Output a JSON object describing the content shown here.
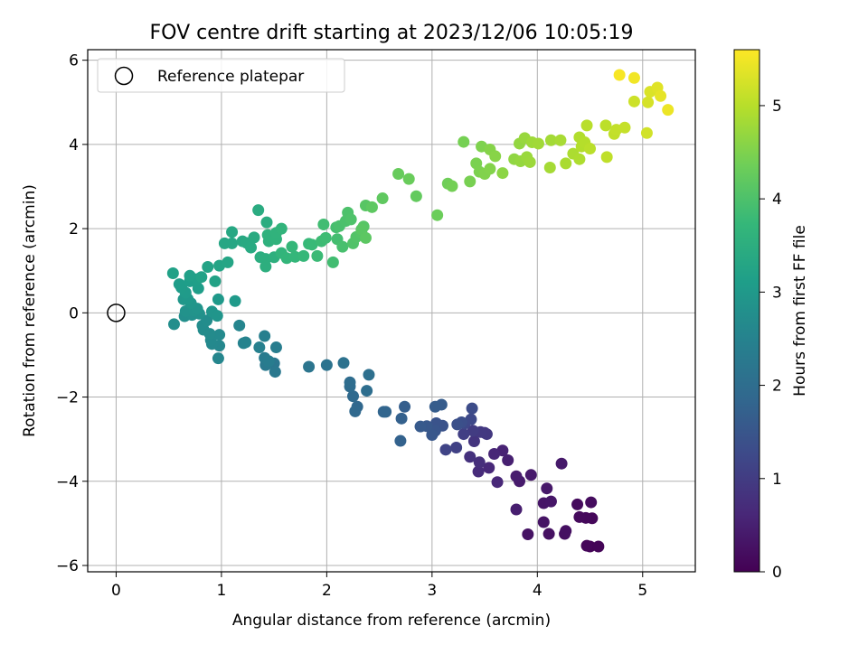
{
  "chart_data": {
    "type": "scatter",
    "title": "FOV centre drift starting at 2023/12/06 10:05:19",
    "xlabel": "Angular distance from reference (arcmin)",
    "ylabel": "Rotation from reference (arcmin)",
    "xlim": [
      -0.27,
      5.5
    ],
    "ylim": [
      -6.15,
      6.25
    ],
    "xticks": [
      0,
      1,
      2,
      3,
      4,
      5
    ],
    "yticks": [
      -6,
      -4,
      -2,
      0,
      2,
      4,
      6
    ],
    "grid": true,
    "legend": {
      "location": "upper-left",
      "entries": [
        {
          "label": "Reference platepar",
          "marker": "open-circle"
        }
      ]
    },
    "reference_point": {
      "x": 0,
      "y": 0
    },
    "colorbar": {
      "label": "Hours from first FF file",
      "range": [
        0,
        5.6
      ],
      "ticks": [
        0,
        1,
        2,
        3,
        4,
        5
      ],
      "colormap": "viridis",
      "stops": [
        "#440154",
        "#482878",
        "#3e4989",
        "#31688e",
        "#26828e",
        "#1f9e89",
        "#35b779",
        "#6ece58",
        "#b5de2b",
        "#fde725"
      ]
    },
    "points": [
      {
        "x": 4.5,
        "y": -5.55,
        "t": 0.05
      },
      {
        "x": 4.58,
        "y": -5.55,
        "t": 0.06
      },
      {
        "x": 4.47,
        "y": -5.53,
        "t": 0.08
      },
      {
        "x": 4.52,
        "y": -4.88,
        "t": 0.1
      },
      {
        "x": 4.46,
        "y": -4.87,
        "t": 0.12
      },
      {
        "x": 4.4,
        "y": -4.85,
        "t": 0.14
      },
      {
        "x": 4.38,
        "y": -4.55,
        "t": 0.16
      },
      {
        "x": 4.51,
        "y": -4.5,
        "t": 0.18
      },
      {
        "x": 4.26,
        "y": -5.25,
        "t": 0.2
      },
      {
        "x": 4.27,
        "y": -5.18,
        "t": 0.22
      },
      {
        "x": 4.11,
        "y": -5.25,
        "t": 0.25
      },
      {
        "x": 3.91,
        "y": -5.26,
        "t": 0.28
      },
      {
        "x": 4.06,
        "y": -4.97,
        "t": 0.3
      },
      {
        "x": 4.06,
        "y": -4.52,
        "t": 0.32
      },
      {
        "x": 4.13,
        "y": -4.48,
        "t": 0.34
      },
      {
        "x": 4.09,
        "y": -4.17,
        "t": 0.36
      },
      {
        "x": 4.23,
        "y": -3.58,
        "t": 0.38
      },
      {
        "x": 3.94,
        "y": -3.85,
        "t": 0.4
      },
      {
        "x": 3.83,
        "y": -4.0,
        "t": 0.42
      },
      {
        "x": 3.8,
        "y": -3.88,
        "t": 0.45
      },
      {
        "x": 3.8,
        "y": -4.67,
        "t": 0.47
      },
      {
        "x": 3.72,
        "y": -3.5,
        "t": 0.5
      },
      {
        "x": 3.67,
        "y": -3.27,
        "t": 0.55
      },
      {
        "x": 3.59,
        "y": -3.35,
        "t": 0.6
      },
      {
        "x": 3.62,
        "y": -4.02,
        "t": 0.62
      },
      {
        "x": 3.54,
        "y": -3.68,
        "t": 0.65
      },
      {
        "x": 3.44,
        "y": -3.77,
        "t": 0.7
      },
      {
        "x": 3.45,
        "y": -3.55,
        "t": 0.75
      },
      {
        "x": 3.36,
        "y": -3.42,
        "t": 0.8
      },
      {
        "x": 3.4,
        "y": -3.05,
        "t": 0.85
      },
      {
        "x": 3.5,
        "y": -2.85,
        "t": 0.9
      },
      {
        "x": 3.52,
        "y": -2.88,
        "t": 0.92
      },
      {
        "x": 3.46,
        "y": -2.83,
        "t": 0.95
      },
      {
        "x": 3.39,
        "y": -2.8,
        "t": 1.0
      },
      {
        "x": 3.3,
        "y": -2.88,
        "t": 1.05
      },
      {
        "x": 3.23,
        "y": -3.2,
        "t": 1.1
      },
      {
        "x": 3.13,
        "y": -3.25,
        "t": 1.15
      },
      {
        "x": 3.31,
        "y": -2.63,
        "t": 1.2
      },
      {
        "x": 3.37,
        "y": -2.53,
        "t": 1.25
      },
      {
        "x": 3.38,
        "y": -2.27,
        "t": 1.3
      },
      {
        "x": 3.28,
        "y": -2.6,
        "t": 1.35
      },
      {
        "x": 3.24,
        "y": -2.65,
        "t": 1.38
      },
      {
        "x": 3.1,
        "y": -2.68,
        "t": 1.42
      },
      {
        "x": 3.04,
        "y": -2.62,
        "t": 1.45
      },
      {
        "x": 3.03,
        "y": -2.8,
        "t": 1.48
      },
      {
        "x": 3.0,
        "y": -2.9,
        "t": 1.52
      },
      {
        "x": 2.95,
        "y": -2.69,
        "t": 1.55
      },
      {
        "x": 2.89,
        "y": -2.7,
        "t": 1.58
      },
      {
        "x": 3.09,
        "y": -2.18,
        "t": 1.62
      },
      {
        "x": 3.03,
        "y": -2.23,
        "t": 1.65
      },
      {
        "x": 2.74,
        "y": -2.23,
        "t": 1.68
      },
      {
        "x": 2.71,
        "y": -2.51,
        "t": 1.72
      },
      {
        "x": 2.7,
        "y": -3.04,
        "t": 1.75
      },
      {
        "x": 2.56,
        "y": -2.35,
        "t": 1.8
      },
      {
        "x": 2.54,
        "y": -2.35,
        "t": 1.82
      },
      {
        "x": 2.29,
        "y": -2.23,
        "t": 1.86
      },
      {
        "x": 2.27,
        "y": -2.34,
        "t": 1.89
      },
      {
        "x": 2.25,
        "y": -1.98,
        "t": 1.92
      },
      {
        "x": 2.22,
        "y": -1.75,
        "t": 1.96
      },
      {
        "x": 2.22,
        "y": -1.65,
        "t": 1.99
      },
      {
        "x": 2.38,
        "y": -1.85,
        "t": 2.02
      },
      {
        "x": 2.4,
        "y": -1.47,
        "t": 2.06
      },
      {
        "x": 2.16,
        "y": -1.19,
        "t": 2.1
      },
      {
        "x": 2.0,
        "y": -1.24,
        "t": 2.13
      },
      {
        "x": 1.83,
        "y": -1.28,
        "t": 2.17
      },
      {
        "x": 1.5,
        "y": -1.2,
        "t": 2.2
      },
      {
        "x": 1.51,
        "y": -1.4,
        "t": 2.24
      },
      {
        "x": 1.42,
        "y": -1.24,
        "t": 2.28
      },
      {
        "x": 1.41,
        "y": -1.07,
        "t": 2.31
      },
      {
        "x": 1.45,
        "y": -1.15,
        "t": 2.35
      },
      {
        "x": 1.52,
        "y": -0.82,
        "t": 2.38
      },
      {
        "x": 1.41,
        "y": -0.55,
        "t": 2.42
      },
      {
        "x": 1.36,
        "y": -0.82,
        "t": 2.45
      },
      {
        "x": 1.21,
        "y": -0.72,
        "t": 2.48
      },
      {
        "x": 1.23,
        "y": -0.7,
        "t": 2.52
      },
      {
        "x": 1.17,
        "y": -0.3,
        "t": 2.55
      },
      {
        "x": 0.97,
        "y": -1.08,
        "t": 2.58
      },
      {
        "x": 0.98,
        "y": -0.78,
        "t": 2.6
      },
      {
        "x": 0.91,
        "y": -0.74,
        "t": 2.62
      },
      {
        "x": 0.9,
        "y": -0.65,
        "t": 2.64
      },
      {
        "x": 0.98,
        "y": -0.52,
        "t": 2.66
      },
      {
        "x": 0.89,
        "y": -0.5,
        "t": 2.68
      },
      {
        "x": 0.83,
        "y": -0.4,
        "t": 2.7
      },
      {
        "x": 0.82,
        "y": -0.3,
        "t": 2.72
      },
      {
        "x": 0.86,
        "y": -0.18,
        "t": 2.74
      },
      {
        "x": 0.55,
        "y": -0.27,
        "t": 2.76
      },
      {
        "x": 0.65,
        "y": -0.08,
        "t": 2.78
      },
      {
        "x": 0.72,
        "y": -0.05,
        "t": 2.8
      },
      {
        "x": 0.79,
        "y": -0.02,
        "t": 2.82
      },
      {
        "x": 0.66,
        "y": 0.04,
        "t": 2.84
      },
      {
        "x": 0.74,
        "y": 0.05,
        "t": 2.86
      },
      {
        "x": 0.77,
        "y": 0.1,
        "t": 2.88
      },
      {
        "x": 0.91,
        "y": 0.03,
        "t": 2.9
      },
      {
        "x": 0.96,
        "y": -0.07,
        "t": 2.92
      },
      {
        "x": 0.71,
        "y": 0.23,
        "t": 2.94
      },
      {
        "x": 0.64,
        "y": 0.32,
        "t": 2.96
      },
      {
        "x": 0.68,
        "y": 0.33,
        "t": 2.98
      },
      {
        "x": 0.97,
        "y": 0.32,
        "t": 3.0
      },
      {
        "x": 1.13,
        "y": 0.28,
        "t": 3.02
      },
      {
        "x": 0.66,
        "y": 0.48,
        "t": 3.04
      },
      {
        "x": 0.62,
        "y": 0.6,
        "t": 3.06
      },
      {
        "x": 0.6,
        "y": 0.68,
        "t": 3.08
      },
      {
        "x": 0.7,
        "y": 0.75,
        "t": 3.1
      },
      {
        "x": 0.78,
        "y": 0.58,
        "t": 3.12
      },
      {
        "x": 0.77,
        "y": 0.8,
        "t": 3.14
      },
      {
        "x": 0.7,
        "y": 0.88,
        "t": 3.16
      },
      {
        "x": 0.54,
        "y": 0.94,
        "t": 3.18
      },
      {
        "x": 0.81,
        "y": 0.85,
        "t": 3.2
      },
      {
        "x": 0.94,
        "y": 0.75,
        "t": 3.22
      },
      {
        "x": 0.87,
        "y": 1.09,
        "t": 3.24
      },
      {
        "x": 0.98,
        "y": 1.12,
        "t": 3.26
      },
      {
        "x": 1.06,
        "y": 1.2,
        "t": 3.28
      },
      {
        "x": 1.03,
        "y": 1.65,
        "t": 3.3
      },
      {
        "x": 1.1,
        "y": 1.65,
        "t": 3.32
      },
      {
        "x": 1.1,
        "y": 1.92,
        "t": 3.34
      },
      {
        "x": 1.2,
        "y": 1.7,
        "t": 3.36
      },
      {
        "x": 1.24,
        "y": 1.66,
        "t": 3.38
      },
      {
        "x": 1.28,
        "y": 1.55,
        "t": 3.4
      },
      {
        "x": 1.31,
        "y": 1.79,
        "t": 3.42
      },
      {
        "x": 1.35,
        "y": 2.44,
        "t": 3.44
      },
      {
        "x": 1.43,
        "y": 2.15,
        "t": 3.46
      },
      {
        "x": 1.37,
        "y": 1.32,
        "t": 3.48
      },
      {
        "x": 1.42,
        "y": 1.28,
        "t": 3.5
      },
      {
        "x": 1.42,
        "y": 1.1,
        "t": 3.52
      },
      {
        "x": 1.5,
        "y": 1.32,
        "t": 3.54
      },
      {
        "x": 1.45,
        "y": 1.7,
        "t": 3.56
      },
      {
        "x": 1.44,
        "y": 1.85,
        "t": 3.58
      },
      {
        "x": 1.52,
        "y": 1.75,
        "t": 3.6
      },
      {
        "x": 1.52,
        "y": 1.9,
        "t": 3.62
      },
      {
        "x": 1.57,
        "y": 2.0,
        "t": 3.64
      },
      {
        "x": 1.57,
        "y": 1.42,
        "t": 3.66
      },
      {
        "x": 1.62,
        "y": 1.3,
        "t": 3.68
      },
      {
        "x": 1.7,
        "y": 1.33,
        "t": 3.7
      },
      {
        "x": 1.67,
        "y": 1.57,
        "t": 3.72
      },
      {
        "x": 1.78,
        "y": 1.35,
        "t": 3.74
      },
      {
        "x": 1.83,
        "y": 1.64,
        "t": 3.76
      },
      {
        "x": 1.86,
        "y": 1.62,
        "t": 3.78
      },
      {
        "x": 1.91,
        "y": 1.35,
        "t": 3.8
      },
      {
        "x": 1.95,
        "y": 1.7,
        "t": 3.82
      },
      {
        "x": 1.99,
        "y": 1.78,
        "t": 3.84
      },
      {
        "x": 1.97,
        "y": 2.1,
        "t": 3.86
      },
      {
        "x": 2.06,
        "y": 1.2,
        "t": 3.88
      },
      {
        "x": 2.1,
        "y": 1.75,
        "t": 3.9
      },
      {
        "x": 2.09,
        "y": 2.03,
        "t": 3.92
      },
      {
        "x": 2.15,
        "y": 1.57,
        "t": 3.94
      },
      {
        "x": 2.12,
        "y": 2.06,
        "t": 3.96
      },
      {
        "x": 2.18,
        "y": 2.18,
        "t": 3.98
      },
      {
        "x": 2.2,
        "y": 2.38,
        "t": 4.0
      },
      {
        "x": 2.23,
        "y": 2.22,
        "t": 4.02
      },
      {
        "x": 2.25,
        "y": 1.65,
        "t": 4.04
      },
      {
        "x": 2.28,
        "y": 1.8,
        "t": 4.06
      },
      {
        "x": 2.33,
        "y": 1.9,
        "t": 4.08
      },
      {
        "x": 2.35,
        "y": 2.05,
        "t": 4.1
      },
      {
        "x": 2.37,
        "y": 2.55,
        "t": 4.12
      },
      {
        "x": 2.33,
        "y": 1.98,
        "t": 4.14
      },
      {
        "x": 2.37,
        "y": 1.78,
        "t": 4.16
      },
      {
        "x": 2.43,
        "y": 2.51,
        "t": 4.18
      },
      {
        "x": 2.53,
        "y": 2.72,
        "t": 4.2
      },
      {
        "x": 2.85,
        "y": 2.77,
        "t": 4.24
      },
      {
        "x": 2.68,
        "y": 3.3,
        "t": 4.28
      },
      {
        "x": 2.78,
        "y": 3.18,
        "t": 4.3
      },
      {
        "x": 3.05,
        "y": 2.32,
        "t": 4.32
      },
      {
        "x": 3.15,
        "y": 3.07,
        "t": 4.36
      },
      {
        "x": 3.19,
        "y": 3.01,
        "t": 4.4
      },
      {
        "x": 3.3,
        "y": 4.06,
        "t": 4.42
      },
      {
        "x": 3.36,
        "y": 3.12,
        "t": 4.44
      },
      {
        "x": 3.42,
        "y": 3.55,
        "t": 4.46
      },
      {
        "x": 3.45,
        "y": 3.35,
        "t": 4.48
      },
      {
        "x": 3.47,
        "y": 3.95,
        "t": 4.5
      },
      {
        "x": 3.5,
        "y": 3.3,
        "t": 4.52
      },
      {
        "x": 3.55,
        "y": 3.42,
        "t": 4.54
      },
      {
        "x": 3.55,
        "y": 3.88,
        "t": 4.56
      },
      {
        "x": 3.6,
        "y": 3.72,
        "t": 4.58
      },
      {
        "x": 3.67,
        "y": 3.32,
        "t": 4.62
      },
      {
        "x": 3.78,
        "y": 3.65,
        "t": 4.65
      },
      {
        "x": 3.83,
        "y": 4.02,
        "t": 4.68
      },
      {
        "x": 3.84,
        "y": 3.6,
        "t": 4.7
      },
      {
        "x": 3.88,
        "y": 4.15,
        "t": 4.72
      },
      {
        "x": 3.9,
        "y": 3.7,
        "t": 4.74
      },
      {
        "x": 3.93,
        "y": 3.58,
        "t": 4.76
      },
      {
        "x": 3.95,
        "y": 4.05,
        "t": 4.78
      },
      {
        "x": 4.01,
        "y": 4.02,
        "t": 4.8
      },
      {
        "x": 4.13,
        "y": 4.1,
        "t": 4.82
      },
      {
        "x": 4.12,
        "y": 3.45,
        "t": 4.84
      },
      {
        "x": 4.22,
        "y": 4.1,
        "t": 4.86
      },
      {
        "x": 4.27,
        "y": 3.55,
        "t": 4.88
      },
      {
        "x": 4.34,
        "y": 3.78,
        "t": 4.9
      },
      {
        "x": 4.4,
        "y": 3.65,
        "t": 4.92
      },
      {
        "x": 4.4,
        "y": 4.17,
        "t": 4.94
      },
      {
        "x": 4.42,
        "y": 3.95,
        "t": 4.96
      },
      {
        "x": 4.45,
        "y": 4.05,
        "t": 4.98
      },
      {
        "x": 4.47,
        "y": 4.45,
        "t": 5.0
      },
      {
        "x": 4.5,
        "y": 3.9,
        "t": 5.02
      },
      {
        "x": 4.65,
        "y": 4.45,
        "t": 5.04
      },
      {
        "x": 4.66,
        "y": 3.7,
        "t": 5.06
      },
      {
        "x": 4.73,
        "y": 4.25,
        "t": 5.08
      },
      {
        "x": 4.75,
        "y": 4.35,
        "t": 5.1
      },
      {
        "x": 4.83,
        "y": 4.4,
        "t": 5.12
      },
      {
        "x": 4.92,
        "y": 5.02,
        "t": 5.18
      },
      {
        "x": 5.04,
        "y": 4.27,
        "t": 5.22
      },
      {
        "x": 5.05,
        "y": 5.0,
        "t": 5.25
      },
      {
        "x": 5.07,
        "y": 5.25,
        "t": 5.3
      },
      {
        "x": 5.14,
        "y": 5.35,
        "t": 5.35
      },
      {
        "x": 5.17,
        "y": 5.15,
        "t": 5.4
      },
      {
        "x": 5.24,
        "y": 4.82,
        "t": 5.45
      },
      {
        "x": 4.92,
        "y": 5.58,
        "t": 5.5
      },
      {
        "x": 4.78,
        "y": 5.65,
        "t": 5.55
      }
    ]
  }
}
